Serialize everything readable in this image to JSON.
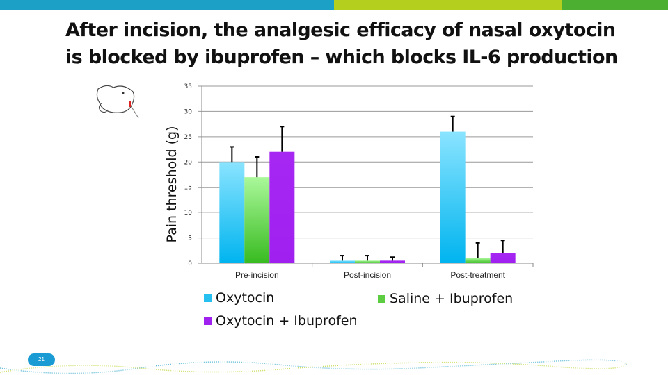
{
  "slide": {
    "title": "After incision, the analgesic efficacy of nasal oxytocin is blocked by ibuprofen – which blocks IL-6 production",
    "page_number": "21",
    "top_bar_colors": [
      "#1ca0c6",
      "#b5cf1e",
      "#4caf32"
    ]
  },
  "chart_data": {
    "type": "bar",
    "categories": [
      "Pre-incision",
      "Post-incision",
      "Post-treatment"
    ],
    "ylabel": "Pain threshold (g)",
    "xlabel": "",
    "ylim": [
      0,
      35
    ],
    "yticks": [
      "0",
      "5",
      "10",
      "15",
      "20",
      "25",
      "30",
      "35"
    ],
    "grid": true,
    "legend_position": "bottom",
    "series": [
      {
        "name": "Oxytocin",
        "color": "#25c0f0",
        "values": [
          20,
          0.5,
          26
        ],
        "errors": [
          3,
          1,
          3
        ]
      },
      {
        "name": "Saline + Ibuprofen",
        "color": "#5ccc40",
        "values": [
          17,
          0.5,
          1
        ],
        "errors": [
          4,
          1,
          3
        ]
      },
      {
        "name": "Oxytocin + Ibuprofen",
        "color": "#a020f0",
        "values": [
          22,
          0.5,
          2
        ],
        "errors": [
          5,
          0.7,
          2.5
        ]
      }
    ]
  }
}
